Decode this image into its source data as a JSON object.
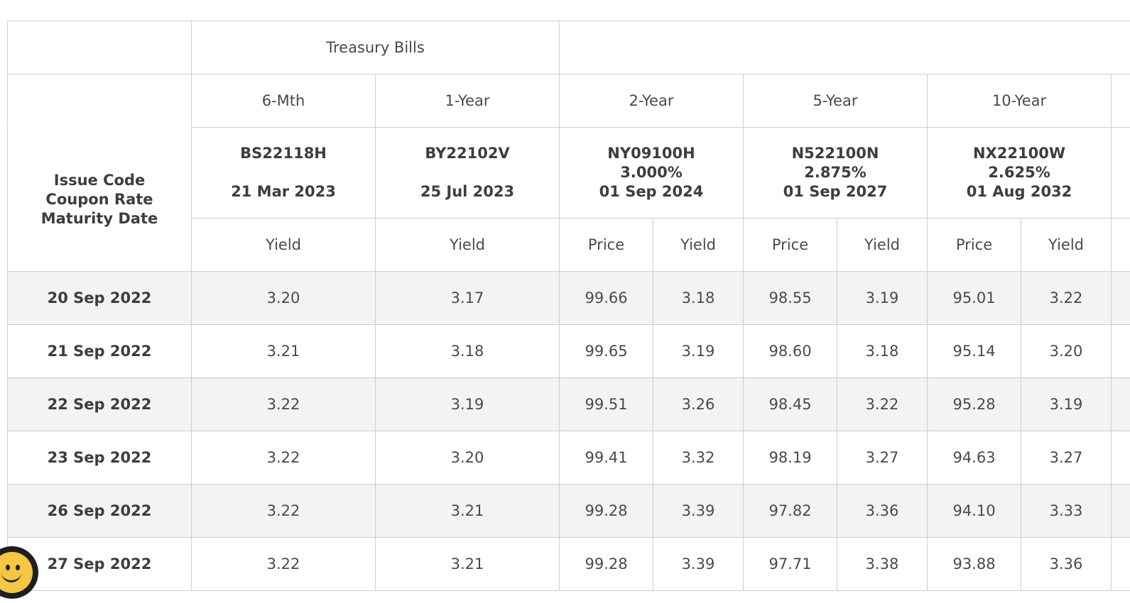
{
  "header": {
    "group_label": "Treasury Bills",
    "tenors": [
      "6-Mth",
      "1-Year",
      "2-Year",
      "5-Year",
      "10-Year"
    ]
  },
  "label_cell": {
    "line1": "Issue Code",
    "line2": "Coupon Rate",
    "line3": "Maturity Date"
  },
  "issues": [
    {
      "code": "BS22118H",
      "coupon": "",
      "maturity": "21 Mar 2023"
    },
    {
      "code": "BY22102V",
      "coupon": "",
      "maturity": "25 Jul 2023"
    },
    {
      "code": "NY09100H",
      "coupon": "3.000%",
      "maturity": "01 Sep 2024"
    },
    {
      "code": "N522100N",
      "coupon": "2.875%",
      "maturity": "01 Sep 2027"
    },
    {
      "code": "NX22100W",
      "coupon": "2.625%",
      "maturity": "01 Aug 2032"
    }
  ],
  "subheaders": {
    "yield": "Yield",
    "price": "Price"
  },
  "rows": [
    {
      "date": "20 Sep 2022",
      "values": [
        "3.20",
        "3.17",
        "99.66",
        "3.18",
        "98.55",
        "3.19",
        "95.01",
        "3.22"
      ]
    },
    {
      "date": "21 Sep 2022",
      "values": [
        "3.21",
        "3.18",
        "99.65",
        "3.19",
        "98.60",
        "3.18",
        "95.14",
        "3.20"
      ]
    },
    {
      "date": "22 Sep 2022",
      "values": [
        "3.22",
        "3.19",
        "99.51",
        "3.26",
        "98.45",
        "3.22",
        "95.28",
        "3.19"
      ]
    },
    {
      "date": "23 Sep 2022",
      "values": [
        "3.22",
        "3.20",
        "99.41",
        "3.32",
        "98.19",
        "3.27",
        "94.63",
        "3.27"
      ]
    },
    {
      "date": "26 Sep 2022",
      "values": [
        "3.22",
        "3.21",
        "99.28",
        "3.39",
        "97.82",
        "3.36",
        "94.10",
        "3.33"
      ]
    },
    {
      "date": "27 Sep 2022",
      "values": [
        "3.22",
        "3.21",
        "99.28",
        "3.39",
        "97.71",
        "3.38",
        "93.88",
        "3.36"
      ]
    }
  ],
  "chat_widget": {
    "icon": "smiley-chat-icon",
    "color": "#f5c742"
  }
}
